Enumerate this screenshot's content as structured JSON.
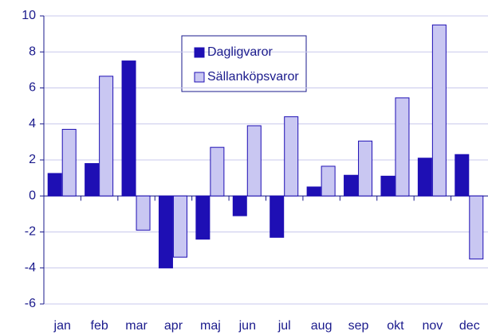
{
  "chart_data": {
    "type": "bar",
    "categories": [
      "jan",
      "feb",
      "mar",
      "apr",
      "maj",
      "jun",
      "jul",
      "aug",
      "sep",
      "okt",
      "nov",
      "dec"
    ],
    "series": [
      {
        "name": "Dagligvaror",
        "color": "#1e0fb4",
        "values": [
          1.25,
          1.8,
          7.5,
          -4.0,
          -2.4,
          -1.1,
          -2.3,
          0.5,
          1.15,
          1.1,
          2.1,
          2.3
        ]
      },
      {
        "name": "Sällanköpsvaror",
        "color": "#c9c7f2",
        "values": [
          3.7,
          6.65,
          -1.9,
          -3.4,
          2.7,
          3.9,
          4.4,
          1.65,
          3.05,
          5.45,
          9.5,
          -3.5
        ]
      }
    ],
    "ylim": [
      -6,
      10
    ],
    "yticks": [
      -6,
      -4,
      -2,
      0,
      2,
      4,
      6,
      8,
      10
    ],
    "grid": true,
    "legend": "top"
  }
}
